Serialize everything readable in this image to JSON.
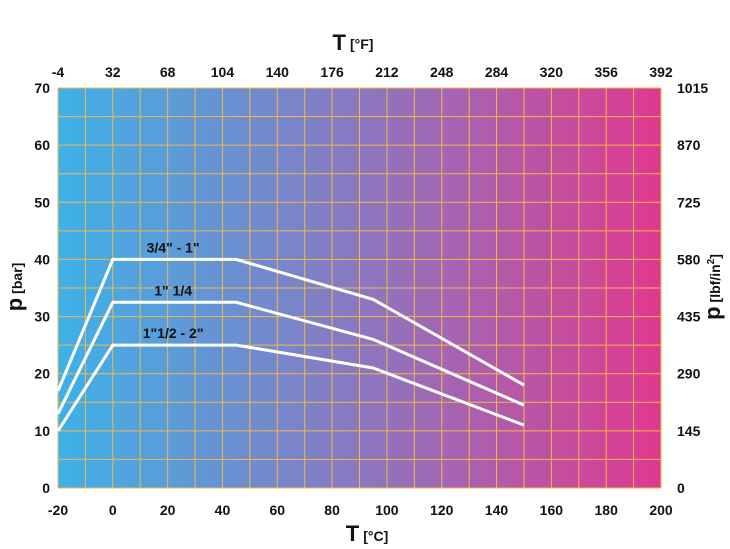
{
  "chart_data": {
    "type": "line",
    "title": "",
    "x_bottom": {
      "symbol": "T",
      "unit": "[°C]",
      "ticks": [
        "-20",
        "0",
        "20",
        "40",
        "60",
        "80",
        "100",
        "120",
        "140",
        "160",
        "180",
        "200"
      ],
      "range": [
        -20,
        200
      ]
    },
    "x_top": {
      "symbol": "T",
      "unit": "[°F]",
      "ticks": [
        "-4",
        "32",
        "68",
        "104",
        "140",
        "176",
        "212",
        "248",
        "284",
        "320",
        "356",
        "392"
      ]
    },
    "y_left": {
      "symbol": "p",
      "unit": "[bar]",
      "ticks": [
        "0",
        "10",
        "20",
        "30",
        "40",
        "50",
        "60",
        "70"
      ],
      "range": [
        0,
        70
      ]
    },
    "y_right": {
      "symbol": "p",
      "unit": "[lbf/in",
      "unit_sup": "2",
      "unit_end": "]",
      "ticks": [
        "0",
        "145",
        "290",
        "435",
        "580",
        "725",
        "870",
        "1015"
      ]
    },
    "grid": true,
    "grid_color": "#f2b84b",
    "gradient": [
      "#3eb1e8",
      "#e0398f"
    ],
    "line_color": "#ffffff",
    "series": [
      {
        "name": "3/4\" - 1\"",
        "points": [
          [
            -20,
            17
          ],
          [
            0,
            40
          ],
          [
            45,
            40
          ],
          [
            95,
            33
          ],
          [
            150,
            18
          ]
        ]
      },
      {
        "name": "1\" 1/4",
        "points": [
          [
            -20,
            13
          ],
          [
            0,
            32.5
          ],
          [
            45,
            32.5
          ],
          [
            95,
            26
          ],
          [
            150,
            14.5
          ]
        ]
      },
      {
        "name": "1\"1/2 - 2\"",
        "points": [
          [
            -20,
            10
          ],
          [
            0,
            25
          ],
          [
            45,
            25
          ],
          [
            95,
            21
          ],
          [
            150,
            11
          ]
        ]
      }
    ]
  }
}
